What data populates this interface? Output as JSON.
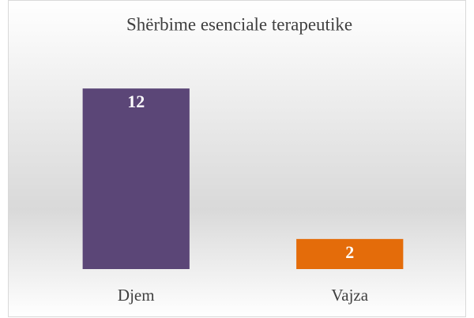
{
  "chart_data": {
    "type": "bar",
    "title": "Shërbime esenciale terapeutike",
    "categories": [
      "Djem",
      "Vajza"
    ],
    "values": [
      12,
      2
    ],
    "colors": [
      "#5b4677",
      "#e46c0a"
    ],
    "ylim": [
      0,
      14
    ]
  }
}
